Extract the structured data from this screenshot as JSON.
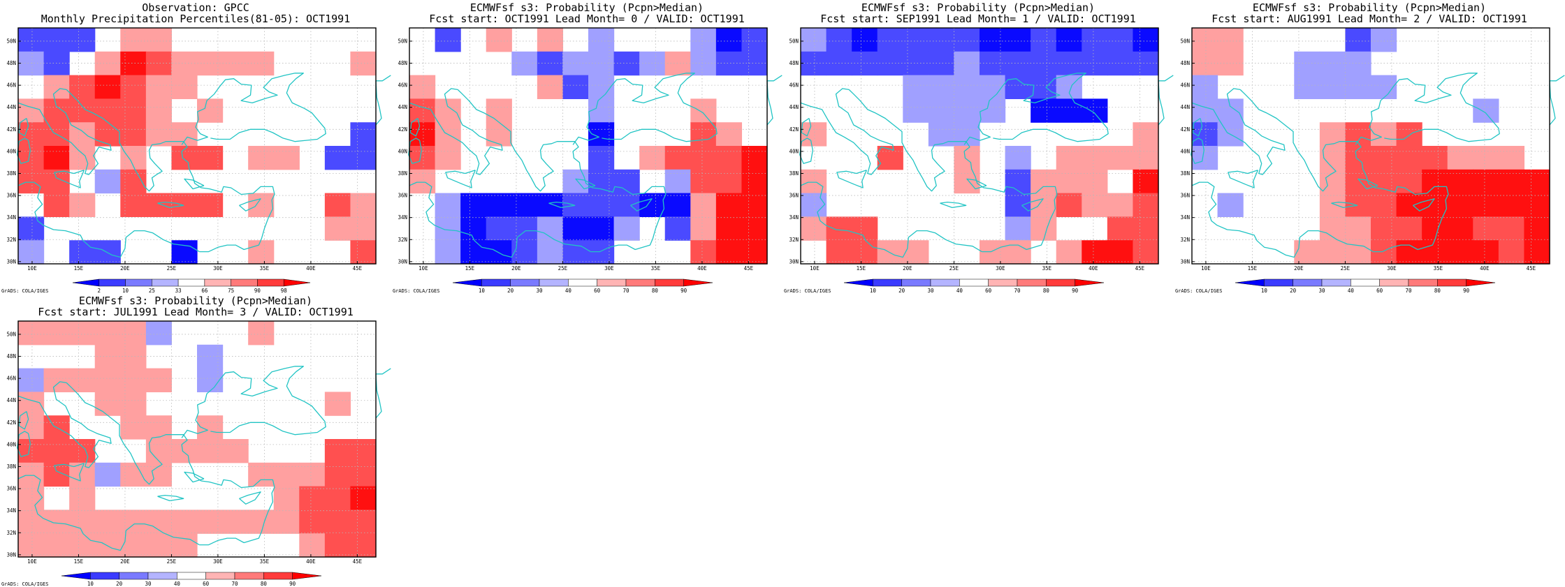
{
  "panels": [
    {
      "title_line1": "Observation: GPCC",
      "title_line2": "Monthly Precipitation Percentiles(81-05): OCT1991",
      "colorbar": "percentile",
      "grid": [
        [
          "b2",
          "b2",
          "b2",
          "w",
          "r1",
          "r1",
          "w",
          "w",
          "w",
          "w",
          "w",
          "w",
          "w",
          "w"
        ],
        [
          "b1",
          "b2",
          "w",
          "r1",
          "r3",
          "r2",
          "r1",
          "r1",
          "r1",
          "r1",
          "w",
          "w",
          "w",
          "r1"
        ],
        [
          "w",
          "r1",
          "r2",
          "r3",
          "r2",
          "r1",
          "r1",
          "w",
          "w",
          "w",
          "w",
          "w",
          "w",
          "w"
        ],
        [
          "r1",
          "r2",
          "r2",
          "r2",
          "r2",
          "r1",
          "w",
          "r1",
          "w",
          "w",
          "w",
          "w",
          "w",
          "w"
        ],
        [
          "r2",
          "r2",
          "r1",
          "r2",
          "r2",
          "r1",
          "r1",
          "w",
          "w",
          "w",
          "w",
          "w",
          "w",
          "b2"
        ],
        [
          "r2",
          "r3",
          "r1",
          "w",
          "r1",
          "w",
          "r2",
          "r2",
          "w",
          "r1",
          "r1",
          "w",
          "b2",
          "b2"
        ],
        [
          "r2",
          "r2",
          "w",
          "b1",
          "r2",
          "w",
          "w",
          "w",
          "w",
          "w",
          "w",
          "w",
          "w",
          "w"
        ],
        [
          "w",
          "r2",
          "r1",
          "w",
          "r2",
          "r2",
          "r2",
          "r2",
          "w",
          "r1",
          "w",
          "w",
          "r2",
          "r1"
        ],
        [
          "b2",
          "w",
          "w",
          "w",
          "w",
          "w",
          "w",
          "w",
          "w",
          "w",
          "w",
          "w",
          "r1",
          "r1"
        ],
        [
          "b1",
          "w",
          "b2",
          "b2",
          "w",
          "w",
          "b3",
          "w",
          "w",
          "r1",
          "w",
          "w",
          "w",
          "r2"
        ]
      ],
      "colorbar_labels": [
        "2",
        "10",
        "25",
        "33",
        "66",
        "75",
        "90",
        "98"
      ],
      "credit": "GrADS: COLA/IGES"
    },
    {
      "title_line1": "ECMWFsf s3: Probability (Pcpn>Median)",
      "title_line2": "Fcst start: OCT1991   Lead Month= 0 / VALID: OCT1991",
      "colorbar": "probability",
      "grid": [
        [
          "w",
          "b2",
          "w",
          "r1",
          "w",
          "r1",
          "w",
          "b1",
          "w",
          "w",
          "w",
          "b1",
          "b3",
          "b2"
        ],
        [
          "w",
          "w",
          "w",
          "w",
          "b1",
          "b2",
          "b1",
          "b1",
          "b2",
          "b1",
          "r1",
          "b1",
          "b2",
          "b2"
        ],
        [
          "r1",
          "w",
          "w",
          "w",
          "w",
          "r1",
          "b2",
          "b1",
          "w",
          "w",
          "w",
          "w",
          "w",
          "w"
        ],
        [
          "r2",
          "r1",
          "w",
          "r1",
          "w",
          "w",
          "w",
          "b1",
          "w",
          "w",
          "w",
          "r1",
          "w",
          "w"
        ],
        [
          "r3",
          "r1",
          "w",
          "r1",
          "w",
          "w",
          "w",
          "b3",
          "w",
          "w",
          "w",
          "r2",
          "r1",
          "w"
        ],
        [
          "r2",
          "r1",
          "w",
          "w",
          "w",
          "w",
          "w",
          "b2",
          "w",
          "r1",
          "r2",
          "r2",
          "r2",
          "r3"
        ],
        [
          "r1",
          "w",
          "w",
          "w",
          "w",
          "w",
          "b1",
          "b2",
          "b2",
          "w",
          "b1",
          "r2",
          "r2",
          "r3"
        ],
        [
          "w",
          "b1",
          "b3",
          "b3",
          "b3",
          "b3",
          "b2",
          "b2",
          "b2",
          "b3",
          "b3",
          "r1",
          "r3",
          "r3"
        ],
        [
          "w",
          "b1",
          "b3",
          "b2",
          "b2",
          "b1",
          "b3",
          "b3",
          "b1",
          "w",
          "b2",
          "r1",
          "r3",
          "r3"
        ],
        [
          "w",
          "b1",
          "b3",
          "b3",
          "b2",
          "b1",
          "b2",
          "b2",
          "w",
          "w",
          "w",
          "r2",
          "r3",
          "r3"
        ]
      ],
      "colorbar_labels": [
        "10",
        "20",
        "30",
        "40",
        "60",
        "70",
        "80",
        "90"
      ],
      "credit": "GrADS: COLA/IGES"
    },
    {
      "title_line1": "ECMWFsf s3: Probability (Pcpn>Median)",
      "title_line2": "Fcst start: SEP1991   Lead Month= 1 / VALID: OCT1991",
      "colorbar": "probability",
      "grid": [
        [
          "b1",
          "b2",
          "b3",
          "b2",
          "b2",
          "b2",
          "b2",
          "b3",
          "b3",
          "b2",
          "b3",
          "b2",
          "b2",
          "b3"
        ],
        [
          "b2",
          "b2",
          "b2",
          "b2",
          "b2",
          "b2",
          "b1",
          "b2",
          "b2",
          "b2",
          "b2",
          "b2",
          "b2",
          "b2"
        ],
        [
          "w",
          "w",
          "w",
          "w",
          "b1",
          "b1",
          "b1",
          "b1",
          "b2",
          "b2",
          "b1",
          "w",
          "w",
          "w"
        ],
        [
          "w",
          "w",
          "w",
          "w",
          "b1",
          "b1",
          "b1",
          "b1",
          "w",
          "b3",
          "b3",
          "b3",
          "w",
          "w"
        ],
        [
          "r1",
          "w",
          "w",
          "w",
          "w",
          "b1",
          "b1",
          "w",
          "w",
          "w",
          "w",
          "w",
          "w",
          "r1"
        ],
        [
          "w",
          "w",
          "w",
          "r2",
          "w",
          "w",
          "r1",
          "w",
          "b1",
          "w",
          "r1",
          "r1",
          "r1",
          "r1"
        ],
        [
          "r1",
          "w",
          "w",
          "w",
          "w",
          "w",
          "r1",
          "w",
          "b2",
          "r1",
          "r1",
          "r1",
          "w",
          "r3"
        ],
        [
          "b1",
          "w",
          "w",
          "w",
          "w",
          "w",
          "w",
          "w",
          "b2",
          "r1",
          "r2",
          "r1",
          "r1",
          "r2"
        ],
        [
          "r1",
          "r2",
          "r2",
          "w",
          "w",
          "w",
          "w",
          "w",
          "b1",
          "r1",
          "w",
          "w",
          "r2",
          "r2"
        ],
        [
          "w",
          "r2",
          "r2",
          "r1",
          "r1",
          "w",
          "w",
          "r1",
          "r1",
          "w",
          "r1",
          "r3",
          "r3",
          "r2"
        ]
      ],
      "colorbar_labels": [
        "10",
        "20",
        "30",
        "40",
        "60",
        "70",
        "80",
        "90"
      ],
      "credit": "GrADS: COLA/IGES"
    },
    {
      "title_line1": "ECMWFsf s3: Probability (Pcpn>Median)",
      "title_line2": "Fcst start: AUG1991   Lead Month= 2 / VALID: OCT1991",
      "colorbar": "probability",
      "grid": [
        [
          "r1",
          "r1",
          "w",
          "w",
          "w",
          "w",
          "b2",
          "b1",
          "w",
          "w",
          "w",
          "w",
          "w",
          "w"
        ],
        [
          "r1",
          "r1",
          "w",
          "w",
          "b1",
          "b1",
          "b1",
          "w",
          "w",
          "w",
          "w",
          "w",
          "w",
          "w"
        ],
        [
          "b1",
          "w",
          "w",
          "w",
          "b1",
          "b1",
          "b1",
          "b1",
          "w",
          "w",
          "w",
          "w",
          "w",
          "w"
        ],
        [
          "b1",
          "b1",
          "w",
          "w",
          "w",
          "w",
          "w",
          "w",
          "w",
          "w",
          "w",
          "b1",
          "w",
          "w"
        ],
        [
          "b2",
          "b1",
          "w",
          "w",
          "w",
          "r1",
          "r2",
          "r1",
          "r2",
          "w",
          "w",
          "w",
          "w",
          "w"
        ],
        [
          "b1",
          "w",
          "w",
          "w",
          "w",
          "r1",
          "r2",
          "r2",
          "r2",
          "r2",
          "r1",
          "r1",
          "r1",
          "w"
        ],
        [
          "w",
          "w",
          "w",
          "w",
          "w",
          "r1",
          "r2",
          "r2",
          "r2",
          "r3",
          "r3",
          "r3",
          "r3",
          "r3"
        ],
        [
          "w",
          "b1",
          "w",
          "w",
          "w",
          "r1",
          "r2",
          "r2",
          "r3",
          "r3",
          "r3",
          "r3",
          "r3",
          "r3"
        ],
        [
          "w",
          "w",
          "w",
          "w",
          "w",
          "r1",
          "r1",
          "r2",
          "r2",
          "r3",
          "r3",
          "r2",
          "r2",
          "r3"
        ],
        [
          "w",
          "w",
          "w",
          "w",
          "r1",
          "r1",
          "r1",
          "r2",
          "r3",
          "r3",
          "r3",
          "r3",
          "r2",
          "r3"
        ]
      ],
      "colorbar_labels": [
        "10",
        "20",
        "30",
        "40",
        "60",
        "70",
        "80",
        "90"
      ],
      "credit": "GrADS: COLA/IGES"
    },
    {
      "title_line1": "ECMWFsf s3: Probability (Pcpn>Median)",
      "title_line2": "Fcst start: JUL1991   Lead Month= 3 / VALID: OCT1991",
      "colorbar": "probability",
      "grid": [
        [
          "r1",
          "r1",
          "r1",
          "r1",
          "r1",
          "b1",
          "w",
          "w",
          "w",
          "r1",
          "w",
          "w",
          "w",
          "w"
        ],
        [
          "w",
          "w",
          "w",
          "r1",
          "r1",
          "w",
          "w",
          "b1",
          "w",
          "w",
          "w",
          "w",
          "w",
          "w"
        ],
        [
          "b1",
          "r1",
          "r1",
          "r1",
          "r1",
          "r1",
          "w",
          "b1",
          "w",
          "w",
          "w",
          "w",
          "w",
          "w"
        ],
        [
          "r1",
          "w",
          "w",
          "r1",
          "r1",
          "w",
          "w",
          "w",
          "w",
          "w",
          "w",
          "w",
          "r1",
          "w"
        ],
        [
          "r1",
          "r2",
          "w",
          "w",
          "r1",
          "r1",
          "w",
          "r1",
          "w",
          "w",
          "w",
          "w",
          "w",
          "w"
        ],
        [
          "r2",
          "r2",
          "r2",
          "w",
          "w",
          "r1",
          "r1",
          "r1",
          "r1",
          "w",
          "w",
          "w",
          "r2",
          "r2"
        ],
        [
          "r1",
          "r2",
          "r1",
          "b1",
          "r1",
          "r1",
          "w",
          "w",
          "w",
          "r1",
          "r1",
          "r1",
          "r2",
          "r2"
        ],
        [
          "r1",
          "w",
          "r1",
          "w",
          "w",
          "w",
          "w",
          "w",
          "w",
          "w",
          "r1",
          "r2",
          "r2",
          "r3"
        ],
        [
          "r1",
          "r1",
          "r1",
          "r1",
          "r1",
          "r1",
          "r1",
          "r1",
          "r1",
          "r1",
          "r1",
          "r2",
          "r2",
          "r2"
        ],
        [
          "r1",
          "r1",
          "r1",
          "r1",
          "r1",
          "r1",
          "r1",
          "w",
          "w",
          "w",
          "w",
          "r1",
          "r2",
          "r2"
        ]
      ],
      "colorbar_labels": [
        "10",
        "20",
        "30",
        "40",
        "60",
        "70",
        "80",
        "90"
      ],
      "credit": "GrADS: COLA/IGES"
    }
  ],
  "map": {
    "lat_labels": [
      "50N",
      "48N",
      "46N",
      "44N",
      "42N",
      "40N",
      "38N",
      "36N",
      "34N",
      "32N",
      "30N"
    ],
    "lon_labels": [
      "10E",
      "15E",
      "20E",
      "25E",
      "30E",
      "35E",
      "40E",
      "45E"
    ],
    "lon_range": [
      8.5,
      47
    ],
    "lat_range": [
      29.8,
      51.2
    ],
    "lat_ticks": [
      50,
      48,
      46,
      44,
      42,
      40,
      38,
      36,
      34,
      32,
      30
    ],
    "lon_ticks": [
      10,
      15,
      20,
      25,
      30,
      35,
      40,
      45
    ]
  },
  "colors": {
    "w": "#ffffff",
    "b1": "#a0a0ff",
    "b2": "#4a4aff",
    "b3": "#0a0aff",
    "r1": "#ffa0a0",
    "r2": "#ff5050",
    "r3": "#ff1010",
    "coast": "#21c4c4",
    "grid": "#b8b8b8",
    "colorbar": [
      "#0000ff",
      "#3b3bff",
      "#7a7aff",
      "#b4b4ff",
      "#ffffff",
      "#ffb4b4",
      "#ff7a7a",
      "#ff3b3b",
      "#ff0000"
    ]
  }
}
